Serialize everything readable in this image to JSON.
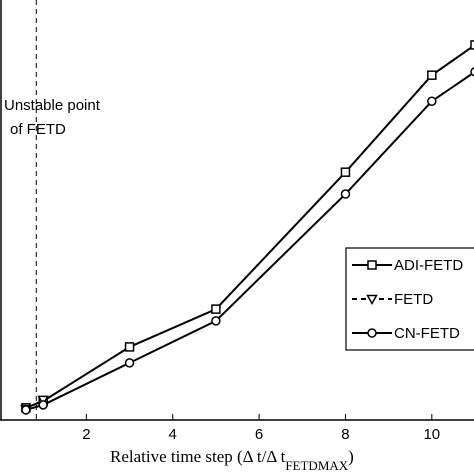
{
  "chart_data": {
    "type": "line",
    "x": [
      0.6,
      1,
      3,
      5,
      8,
      10,
      11
    ],
    "series": [
      {
        "name": "ADI-FETD",
        "color": "#000000",
        "marker": "square",
        "dash": "solid",
        "values": [
          2.9,
          4.5,
          17.4,
          26.4,
          59.0,
          82.1,
          89.3
        ]
      },
      {
        "name": "FETD",
        "color": "#000000",
        "marker": "triangle",
        "dash": "dashed",
        "values": [
          2.6,
          4.8,
          null,
          null,
          null,
          null,
          null
        ]
      },
      {
        "name": "CN-FETD",
        "color": "#000000",
        "marker": "circle",
        "dash": "solid",
        "values": [
          2.4,
          3.6,
          13.6,
          23.6,
          53.8,
          75.9,
          82.9
        ]
      }
    ],
    "xlim": [
      0,
      11
    ],
    "ylim": [
      0,
      100
    ],
    "xticks": [
      2,
      4,
      6,
      8,
      10
    ],
    "x_label": {
      "main": "Relative time step (Δ t/Δ t",
      "sub": "FETDMAX",
      "close": ")"
    },
    "annotation": {
      "lines": [
        "Unstable point",
        "of FETD"
      ],
      "x": 0.84
    },
    "legend": "right"
  }
}
